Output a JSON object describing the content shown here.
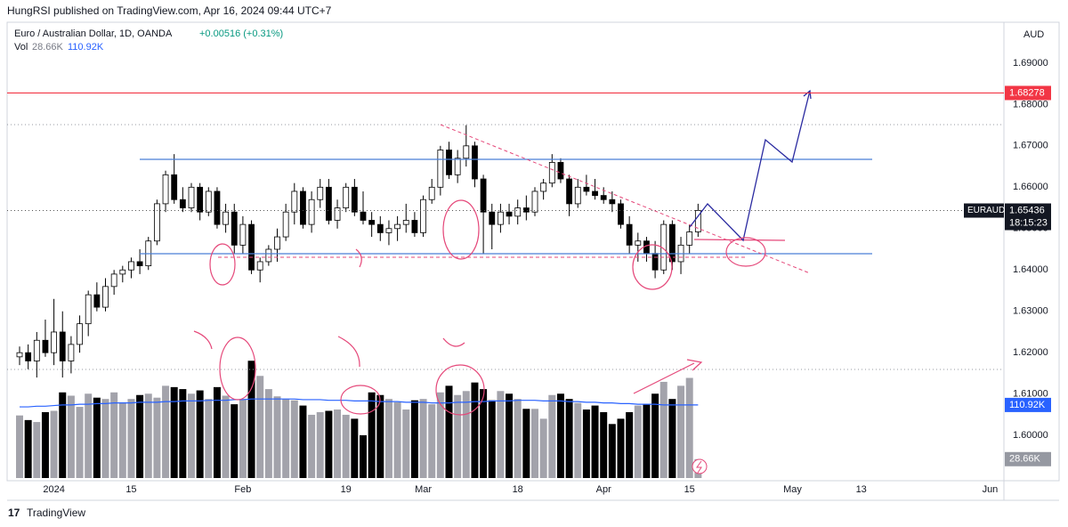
{
  "header": {
    "published": "HungRSI published on TradingView.com, Apr 16, 2024 09:44 UTC+7",
    "footer": "TradingView"
  },
  "chart_data": {
    "type": "candlestick",
    "title": "Euro / Australian Dollar, 1D, OANDA",
    "change": "+0.00516 (+0.31%)",
    "currency": "AUD",
    "volume_label": "28.66K",
    "volume_ma_label": "110.92K",
    "countdown": "18:15:23",
    "last_price": 1.65436,
    "levels": [
      {
        "value": 1.68278,
        "color": "#f23645"
      }
    ],
    "ylim": [
      1.5897,
      1.6988
    ],
    "yticks": [
      {
        "value": 1.6,
        "label": "1.60000"
      },
      {
        "value": 1.61,
        "label": "1.61000"
      },
      {
        "value": 1.62,
        "label": "1.62000"
      },
      {
        "value": 1.63,
        "label": "1.63000"
      },
      {
        "value": 1.64,
        "label": "1.64000"
      },
      {
        "value": 1.65,
        "label": "1.65000"
      },
      {
        "value": 1.66,
        "label": "1.66000"
      },
      {
        "value": 1.67,
        "label": "1.67000"
      },
      {
        "value": 1.68,
        "label": "1.68000"
      },
      {
        "value": 1.69,
        "label": "1.69000"
      }
    ],
    "y2lim": [
      0,
      685
    ],
    "up_color": "#ffffff",
    "down_color": "#000000",
    "volume_up_color": "#a3a3ab",
    "volume_down_color": "#000000",
    "categories": [
      null,
      null,
      null,
      null,
      "2024",
      null,
      null,
      null,
      null,
      null,
      null,
      null,
      null,
      "15",
      null,
      null,
      null,
      null,
      null,
      null,
      null,
      null,
      null,
      null,
      null,
      null,
      "Feb",
      null,
      null,
      null,
      null,
      null,
      null,
      null,
      null,
      null,
      null,
      null,
      "19",
      null,
      null,
      null,
      null,
      null,
      null,
      null,
      null,
      "Mar",
      null,
      null,
      null,
      null,
      null,
      null,
      null,
      null,
      null,
      null,
      "18",
      null,
      null,
      null,
      null,
      null,
      null,
      null,
      null,
      null,
      "Apr",
      null,
      null,
      null,
      null,
      null,
      null,
      null,
      null,
      null,
      "15",
      null,
      null,
      null,
      null,
      null,
      null,
      null,
      null,
      null,
      null,
      null,
      "May",
      null,
      null,
      null,
      null,
      null,
      null,
      null,
      "13",
      null,
      null,
      null,
      null,
      null,
      null,
      null,
      null,
      null,
      null,
      null,
      null,
      null,
      null,
      "Jun"
    ],
    "series": [
      {
        "name": "EURAUD",
        "ohlc": [
          [
            1.619,
            1.6215,
            1.617,
            1.62
          ],
          [
            1.62,
            1.622,
            1.616,
            1.618
          ],
          [
            1.618,
            1.625,
            1.614,
            1.623
          ],
          [
            1.623,
            1.628,
            1.619,
            1.62
          ],
          [
            1.62,
            1.633,
            1.617,
            1.625
          ],
          [
            1.625,
            1.63,
            1.614,
            1.618
          ],
          [
            1.618,
            1.624,
            1.615,
            1.622
          ],
          [
            1.622,
            1.629,
            1.62,
            1.627
          ],
          [
            1.627,
            1.635,
            1.624,
            1.634
          ],
          [
            1.634,
            1.637,
            1.63,
            1.631
          ],
          [
            1.631,
            1.638,
            1.63,
            1.636
          ],
          [
            1.636,
            1.64,
            1.634,
            1.639
          ],
          [
            1.639,
            1.641,
            1.637,
            1.64
          ],
          [
            1.64,
            1.643,
            1.638,
            1.642
          ],
          [
            1.642,
            1.645,
            1.639,
            1.641
          ],
          [
            1.641,
            1.648,
            1.64,
            1.647
          ],
          [
            1.647,
            1.657,
            1.646,
            1.656
          ],
          [
            1.656,
            1.664,
            1.654,
            1.663
          ],
          [
            1.663,
            1.668,
            1.656,
            1.657
          ],
          [
            1.657,
            1.66,
            1.654,
            1.655
          ],
          [
            1.655,
            1.661,
            1.654,
            1.66
          ],
          [
            1.66,
            1.661,
            1.652,
            1.654
          ],
          [
            1.654,
            1.66,
            1.653,
            1.659
          ],
          [
            1.659,
            1.66,
            1.65,
            1.651
          ],
          [
            1.651,
            1.656,
            1.649,
            1.654
          ],
          [
            1.654,
            1.656,
            1.644,
            1.646
          ],
          [
            1.646,
            1.653,
            1.644,
            1.651
          ],
          [
            1.651,
            1.652,
            1.639,
            1.64
          ],
          [
            1.64,
            1.643,
            1.637,
            1.642
          ],
          [
            1.642,
            1.646,
            1.641,
            1.645
          ],
          [
            1.645,
            1.65,
            1.642,
            1.648
          ],
          [
            1.648,
            1.656,
            1.647,
            1.654
          ],
          [
            1.654,
            1.661,
            1.651,
            1.659
          ],
          [
            1.659,
            1.66,
            1.65,
            1.651
          ],
          [
            1.651,
            1.659,
            1.649,
            1.657
          ],
          [
            1.657,
            1.662,
            1.655,
            1.66
          ],
          [
            1.66,
            1.662,
            1.651,
            1.652
          ],
          [
            1.652,
            1.657,
            1.65,
            1.655
          ],
          [
            1.655,
            1.661,
            1.654,
            1.66
          ],
          [
            1.66,
            1.662,
            1.653,
            1.654
          ],
          [
            1.654,
            1.659,
            1.651,
            1.652
          ],
          [
            1.652,
            1.654,
            1.648,
            1.651
          ],
          [
            1.651,
            1.653,
            1.647,
            1.649
          ],
          [
            1.649,
            1.652,
            1.646,
            1.65
          ],
          [
            1.65,
            1.653,
            1.647,
            1.651
          ],
          [
            1.651,
            1.656,
            1.649,
            1.652
          ],
          [
            1.652,
            1.654,
            1.648,
            1.649
          ],
          [
            1.649,
            1.658,
            1.648,
            1.657
          ],
          [
            1.657,
            1.662,
            1.656,
            1.66
          ],
          [
            1.66,
            1.67,
            1.658,
            1.669
          ],
          [
            1.669,
            1.671,
            1.662,
            1.663
          ],
          [
            1.663,
            1.669,
            1.661,
            1.667
          ],
          [
            1.667,
            1.675,
            1.665,
            1.67
          ],
          [
            1.67,
            1.671,
            1.66,
            1.662
          ],
          [
            1.662,
            1.663,
            1.644,
            1.654
          ],
          [
            1.654,
            1.656,
            1.645,
            1.651
          ],
          [
            1.651,
            1.656,
            1.649,
            1.654
          ],
          [
            1.654,
            1.656,
            1.651,
            1.653
          ],
          [
            1.653,
            1.657,
            1.651,
            1.655
          ],
          [
            1.655,
            1.658,
            1.652,
            1.654
          ],
          [
            1.654,
            1.66,
            1.653,
            1.659
          ],
          [
            1.659,
            1.662,
            1.657,
            1.661
          ],
          [
            1.661,
            1.668,
            1.66,
            1.666
          ],
          [
            1.666,
            1.667,
            1.661,
            1.662
          ],
          [
            1.662,
            1.663,
            1.653,
            1.656
          ],
          [
            1.656,
            1.662,
            1.655,
            1.66
          ],
          [
            1.66,
            1.663,
            1.658,
            1.659
          ],
          [
            1.659,
            1.662,
            1.657,
            1.658
          ],
          [
            1.658,
            1.66,
            1.656,
            1.657
          ],
          [
            1.657,
            1.659,
            1.654,
            1.656
          ],
          [
            1.656,
            1.657,
            1.65,
            1.651
          ],
          [
            1.651,
            1.653,
            1.644,
            1.646
          ],
          [
            1.646,
            1.649,
            1.642,
            1.647
          ],
          [
            1.647,
            1.648,
            1.642,
            1.644
          ],
          [
            1.644,
            1.647,
            1.638,
            1.64
          ],
          [
            1.64,
            1.652,
            1.639,
            1.651
          ],
          [
            1.651,
            1.652,
            1.64,
            1.642
          ],
          [
            1.642,
            1.648,
            1.639,
            1.646
          ],
          [
            1.646,
            1.651,
            1.644,
            1.6492
          ],
          [
            1.6492,
            1.656,
            1.648,
            1.65436
          ],
          null,
          null,
          null,
          null,
          null,
          null,
          null,
          null,
          null,
          null,
          null,
          null,
          null,
          null,
          null,
          null,
          null,
          null,
          null,
          null,
          null,
          null,
          null,
          null,
          null,
          null,
          null,
          null,
          null,
          null,
          null,
          null,
          null,
          null
        ]
      },
      {
        "name": "Vol",
        "axis": "y2",
        "values": [
          95,
          88,
          85,
          100,
          102,
          130,
          125,
          108,
          128,
          122,
          120,
          130,
          115,
          120,
          126,
          128,
          122,
          140,
          138,
          135,
          128,
          133,
          120,
          138,
          125,
          112,
          120,
          178,
          155,
          135,
          124,
          120,
          118,
          110,
          96,
          100,
          102,
          104,
          96,
          90,
          65,
          130,
          126,
          120,
          115,
          104,
          118,
          120,
          112,
          130,
          140,
          126,
          132,
          145,
          135,
          118,
          132,
          128,
          120,
          105,
          105,
          90,
          126,
          128,
          120,
          114,
          104,
          110,
          100,
          82,
          90,
          100,
          110,
          112,
          128,
          146,
          120,
          140,
          152,
          28.66,
          null,
          null,
          null,
          null,
          null,
          null,
          null,
          null,
          null,
          null,
          null,
          null,
          null,
          null,
          null,
          null,
          null,
          null,
          null,
          null,
          null,
          null,
          null,
          null,
          null,
          null,
          null,
          null,
          null,
          null,
          null,
          null,
          null,
          null
        ]
      },
      {
        "axis": "y2",
        "color": "#2962ff",
        "values": [
          108,
          108,
          109,
          109,
          110,
          111,
          111,
          112,
          112,
          113,
          113,
          114,
          114,
          114,
          115,
          115,
          115,
          116,
          116,
          117,
          117,
          117,
          118,
          118,
          118,
          119,
          119,
          120,
          120,
          120,
          120,
          120,
          120,
          119,
          119,
          119,
          118,
          118,
          118,
          117,
          117,
          117,
          116,
          116,
          116,
          115,
          115,
          115,
          114,
          114,
          114,
          115,
          115,
          116,
          116,
          117,
          117,
          117,
          118,
          118,
          118,
          117,
          117,
          117,
          116,
          116,
          115,
          115,
          114,
          114,
          113,
          113,
          112,
          112,
          112,
          111,
          111,
          111,
          111,
          110.92,
          null,
          null,
          null,
          null,
          null,
          null,
          null,
          null,
          null,
          null,
          null,
          null,
          null,
          null,
          null,
          null,
          null,
          null,
          null,
          null,
          null,
          null,
          null,
          null,
          null,
          null,
          null,
          null,
          null,
          null,
          null,
          null,
          null,
          null
        ]
      }
    ]
  }
}
